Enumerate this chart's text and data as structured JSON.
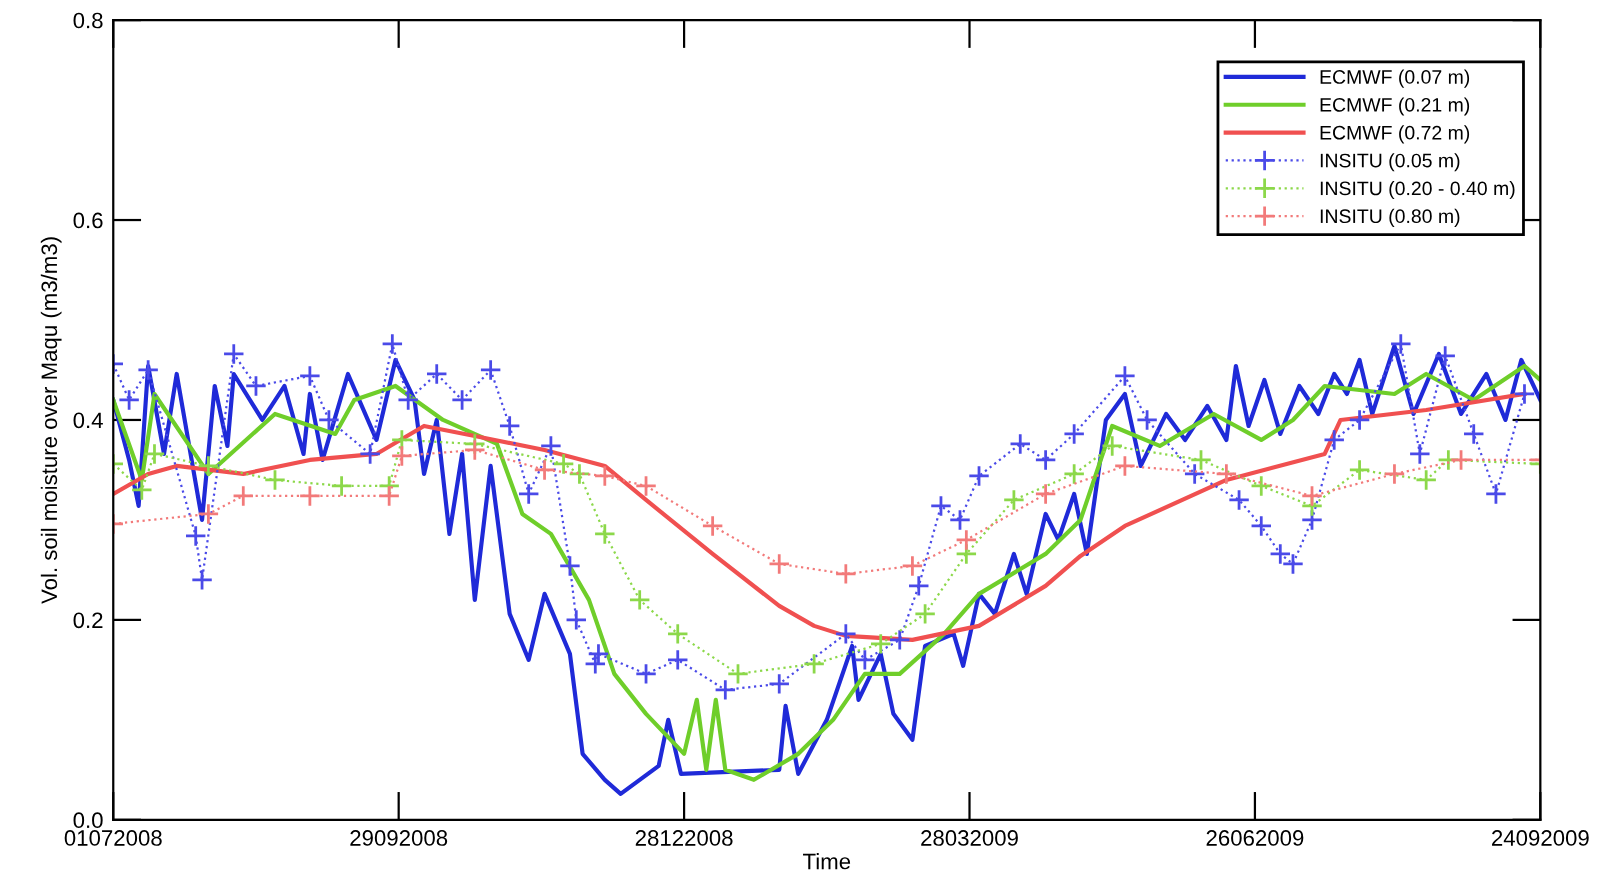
{
  "chart_data": {
    "type": "line",
    "xlabel": "Time",
    "ylabel": "Vol. soil moisture over Maqu (m3/m3)",
    "xlim": [
      "2008-07-01",
      "2009-09-24"
    ],
    "xticks": [
      {
        "value": "2008-07-01",
        "label": "01072008"
      },
      {
        "value": "2008-09-29",
        "label": "29092008"
      },
      {
        "value": "2008-12-28",
        "label": "28122008"
      },
      {
        "value": "2009-03-28",
        "label": "28032009"
      },
      {
        "value": "2009-06-26",
        "label": "26062009"
      },
      {
        "value": "2009-09-24",
        "label": "24092009"
      }
    ],
    "ylim": [
      0,
      0.8
    ],
    "yticks": [
      {
        "value": 0,
        "label": "0.0"
      },
      {
        "value": 0.2,
        "label": "0.2"
      },
      {
        "value": 0.4,
        "label": "0.4"
      },
      {
        "value": 0.6,
        "label": "0.6"
      },
      {
        "value": 0.8,
        "label": "0.8"
      }
    ],
    "grid": false,
    "legend": "top right",
    "series": [
      {
        "name": "ECMWF (0.07 m)",
        "color": "#1f2ad8",
        "marker": "none",
        "line_style": "solid",
        "x": [
          "2008-07-01",
          "2008-07-06",
          "2008-07-09",
          "2008-07-12",
          "2008-07-17",
          "2008-07-21",
          "2008-07-29",
          "2008-08-02",
          "2008-08-06",
          "2008-08-08",
          "2008-08-17",
          "2008-08-24",
          "2008-08-30",
          "2008-09-01",
          "2008-09-05",
          "2008-09-13",
          "2008-09-22",
          "2008-09-28",
          "2008-10-04",
          "2008-10-07",
          "2008-10-11",
          "2008-10-15",
          "2008-10-19",
          "2008-10-23",
          "2008-10-28",
          "2008-11-03",
          "2008-11-09",
          "2008-11-14",
          "2008-11-22",
          "2008-11-26",
          "2008-12-03",
          "2008-12-08",
          "2008-12-20",
          "2008-12-23",
          "2008-12-27",
          "2009-01-27",
          "2009-01-29",
          "2009-02-02",
          "2009-02-11",
          "2009-02-19",
          "2009-02-21",
          "2009-02-28",
          "2009-03-04",
          "2009-03-10",
          "2009-03-14",
          "2009-03-23",
          "2009-03-26",
          "2009-03-31",
          "2009-04-05",
          "2009-04-11",
          "2009-04-15",
          "2009-04-21",
          "2009-04-25",
          "2009-04-30",
          "2009-05-04",
          "2009-05-10",
          "2009-05-16",
          "2009-05-21",
          "2009-05-29",
          "2009-06-04",
          "2009-06-11",
          "2009-06-17",
          "2009-06-20",
          "2009-06-24",
          "2009-06-29",
          "2009-07-04",
          "2009-07-10",
          "2009-07-16",
          "2009-07-21",
          "2009-07-25",
          "2009-07-29",
          "2009-08-02",
          "2009-08-09",
          "2009-08-15",
          "2009-08-23",
          "2009-08-30",
          "2009-09-07",
          "2009-09-13",
          "2009-09-18",
          "2009-09-24"
        ],
        "values": [
          0.42,
          0.36,
          0.314,
          0.454,
          0.366,
          0.446,
          0.3,
          0.434,
          0.374,
          0.446,
          0.4,
          0.434,
          0.366,
          0.426,
          0.36,
          0.446,
          0.38,
          0.46,
          0.42,
          0.346,
          0.4,
          0.286,
          0.366,
          0.22,
          0.354,
          0.206,
          0.16,
          0.226,
          0.166,
          0.066,
          0.04,
          0.026,
          0.054,
          0.1,
          0.046,
          0.05,
          0.114,
          0.046,
          0.1,
          0.174,
          0.12,
          0.166,
          0.106,
          0.08,
          0.174,
          0.186,
          0.154,
          0.226,
          0.206,
          0.266,
          0.226,
          0.306,
          0.28,
          0.326,
          0.266,
          0.4,
          0.426,
          0.354,
          0.406,
          0.38,
          0.414,
          0.38,
          0.454,
          0.394,
          0.44,
          0.386,
          0.434,
          0.406,
          0.446,
          0.426,
          0.46,
          0.406,
          0.474,
          0.406,
          0.466,
          0.406,
          0.446,
          0.4,
          0.46,
          0.42
        ]
      },
      {
        "name": "ECMWF (0.21 m)",
        "color": "#6fce2a",
        "marker": "none",
        "line_style": "solid",
        "x": [
          "2008-07-01",
          "2008-07-10",
          "2008-07-14",
          "2008-07-31",
          "2008-08-21",
          "2008-09-09",
          "2008-09-15",
          "2008-09-28",
          "2008-10-13",
          "2008-10-30",
          "2008-11-07",
          "2008-11-16",
          "2008-11-28",
          "2008-12-03",
          "2008-12-06",
          "2008-12-16",
          "2008-12-28",
          "2009-01-01",
          "2009-01-04",
          "2009-01-07",
          "2009-01-10",
          "2009-01-19",
          "2009-02-02",
          "2009-02-13",
          "2009-02-23",
          "2009-03-06",
          "2009-03-20",
          "2009-03-31",
          "2009-04-21",
          "2009-05-02",
          "2009-05-12",
          "2009-05-27",
          "2009-06-13",
          "2009-06-28",
          "2009-07-08",
          "2009-07-18",
          "2009-08-09",
          "2009-08-19",
          "2009-09-03",
          "2009-09-19",
          "2009-09-24"
        ],
        "values": [
          0.42,
          0.34,
          0.426,
          0.346,
          0.406,
          0.386,
          0.42,
          0.434,
          0.4,
          0.376,
          0.306,
          0.286,
          0.22,
          0.174,
          0.146,
          0.106,
          0.066,
          0.12,
          0.05,
          0.12,
          0.05,
          0.04,
          0.066,
          0.1,
          0.146,
          0.146,
          0.186,
          0.226,
          0.266,
          0.3,
          0.394,
          0.374,
          0.406,
          0.38,
          0.4,
          0.434,
          0.426,
          0.446,
          0.42,
          0.454,
          0.44
        ]
      },
      {
        "name": "ECMWF (0.72 m)",
        "color": "#f05050",
        "marker": "none",
        "line_style": "solid",
        "x": [
          "2008-07-01",
          "2008-07-12",
          "2008-07-21",
          "2008-08-11",
          "2008-09-01",
          "2008-09-22",
          "2008-10-07",
          "2008-10-23",
          "2008-11-14",
          "2008-12-03",
          "2008-12-16",
          "2009-01-06",
          "2009-01-27",
          "2009-02-07",
          "2009-02-17",
          "2009-03-10",
          "2009-03-31",
          "2009-04-21",
          "2009-05-02",
          "2009-05-16",
          "2009-06-17",
          "2009-07-18",
          "2009-07-23",
          "2009-08-19",
          "2009-09-19"
        ],
        "values": [
          0.326,
          0.346,
          0.354,
          0.346,
          0.36,
          0.366,
          0.394,
          0.384,
          0.37,
          0.354,
          0.32,
          0.266,
          0.214,
          0.194,
          0.184,
          0.18,
          0.194,
          0.234,
          0.264,
          0.294,
          0.34,
          0.366,
          0.4,
          0.41,
          0.426
        ]
      },
      {
        "name": "INSITU (0.05 m)",
        "color": "#4a4ae8",
        "marker": "cross",
        "line_style": "dotted",
        "x": [
          "2008-07-01",
          "2008-07-06",
          "2008-07-12",
          "2008-07-27",
          "2008-07-29",
          "2008-08-08",
          "2008-08-15",
          "2008-09-01",
          "2008-09-07",
          "2008-09-20",
          "2008-09-27",
          "2008-10-02",
          "2008-10-11",
          "2008-10-19",
          "2008-10-28",
          "2008-11-03",
          "2008-11-09",
          "2008-11-16",
          "2008-11-22",
          "2008-11-24",
          "2008-11-30",
          "2008-12-01",
          "2008-12-16",
          "2008-12-26",
          "2009-01-10",
          "2009-01-27",
          "2009-02-17",
          "2009-02-23",
          "2009-03-06",
          "2009-03-12",
          "2009-03-19",
          "2009-03-25",
          "2009-03-31",
          "2009-04-13",
          "2009-04-21",
          "2009-04-30",
          "2009-05-16",
          "2009-05-23",
          "2009-06-07",
          "2009-06-21",
          "2009-06-28",
          "2009-07-04",
          "2009-07-08",
          "2009-07-14",
          "2009-07-21",
          "2009-07-29",
          "2009-08-11",
          "2009-08-17",
          "2009-08-25",
          "2009-09-03",
          "2009-09-10",
          "2009-09-19"
        ],
        "values": [
          0.456,
          0.42,
          0.45,
          0.284,
          0.24,
          0.466,
          0.434,
          0.444,
          0.4,
          0.366,
          0.476,
          0.42,
          0.446,
          0.42,
          0.45,
          0.394,
          0.326,
          0.374,
          0.254,
          0.2,
          0.156,
          0.166,
          0.146,
          0.16,
          0.13,
          0.136,
          0.186,
          0.16,
          0.18,
          0.234,
          0.314,
          0.3,
          0.344,
          0.376,
          0.36,
          0.386,
          0.444,
          0.4,
          0.346,
          0.32,
          0.294,
          0.266,
          0.256,
          0.3,
          0.38,
          0.4,
          0.476,
          0.366,
          0.464,
          0.386,
          0.326,
          0.426
        ]
      },
      {
        "name": "INSITU (0.20 - 0.40 m)",
        "color": "#8cd84a",
        "marker": "cross",
        "line_style": "dotted",
        "x": [
          "2008-07-01",
          "2008-07-10",
          "2008-07-14",
          "2008-07-31",
          "2008-08-21",
          "2008-09-11",
          "2008-09-26",
          "2008-09-30",
          "2008-10-23",
          "2008-11-20",
          "2008-11-25",
          "2008-12-03",
          "2008-12-14",
          "2008-12-26",
          "2009-01-14",
          "2009-02-07",
          "2009-02-28",
          "2009-03-14",
          "2009-03-27",
          "2009-04-11",
          "2009-04-30",
          "2009-05-12",
          "2009-06-09",
          "2009-06-28",
          "2009-07-14",
          "2009-07-29",
          "2009-08-19",
          "2009-08-26",
          "2009-09-24"
        ],
        "values": [
          0.356,
          0.33,
          0.366,
          0.354,
          0.34,
          0.334,
          0.334,
          0.38,
          0.376,
          0.356,
          0.346,
          0.286,
          0.22,
          0.186,
          0.146,
          0.156,
          0.176,
          0.206,
          0.266,
          0.32,
          0.346,
          0.374,
          0.36,
          0.334,
          0.314,
          0.35,
          0.34,
          0.36,
          0.356
        ]
      },
      {
        "name": "INSITU (0.80 m)",
        "color": "#f27a7a",
        "marker": "cross",
        "line_style": "dotted",
        "x": [
          "2008-07-01",
          "2008-07-31",
          "2008-08-11",
          "2008-09-01",
          "2008-09-26",
          "2008-09-30",
          "2008-10-23",
          "2008-11-14",
          "2008-12-03",
          "2008-12-16",
          "2009-01-06",
          "2009-01-27",
          "2009-02-17",
          "2009-03-10",
          "2009-03-27",
          "2009-04-21",
          "2009-05-16",
          "2009-06-17",
          "2009-07-14",
          "2009-08-09",
          "2009-08-30",
          "2009-09-24"
        ],
        "values": [
          0.296,
          0.306,
          0.324,
          0.324,
          0.324,
          0.364,
          0.37,
          0.35,
          0.344,
          0.334,
          0.294,
          0.256,
          0.246,
          0.254,
          0.28,
          0.326,
          0.354,
          0.346,
          0.324,
          0.346,
          0.36,
          0.36
        ]
      }
    ]
  }
}
